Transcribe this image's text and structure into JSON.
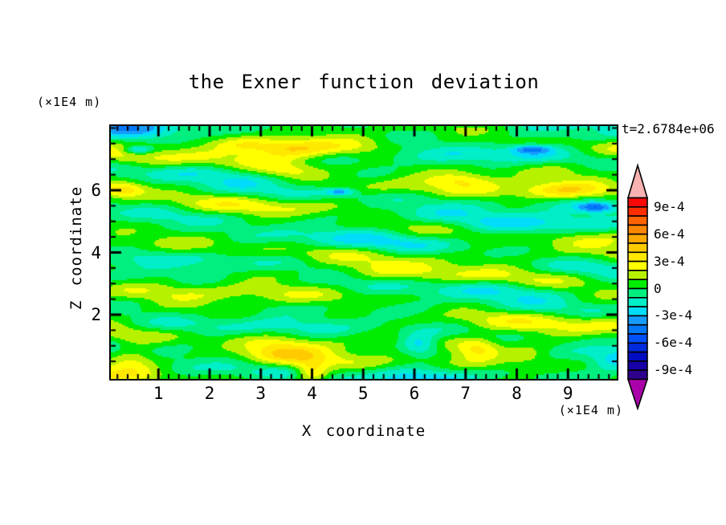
{
  "title": "the Exner function deviation",
  "time_label": "t=2.6784e+06",
  "axes": {
    "x_label": "X coordinate",
    "x_unit": "(×1E4 m)",
    "y_label": "Z coordinate",
    "y_unit": "(×1E4 m)"
  },
  "chart_data": {
    "type": "heatmap",
    "subtype": "filled-contour",
    "title": "the Exner function deviation",
    "time_annotation": "t=2.6784e+06",
    "xlabel": "X coordinate",
    "ylabel": "Z coordinate",
    "x_unit": "(×1E4 m)",
    "y_unit": "(×1E4 m)",
    "xlim": [
      0.07,
      9.95
    ],
    "ylim": [
      -0.06,
      8.06
    ],
    "x_major_ticks": [
      1,
      2,
      3,
      4,
      5,
      6,
      7,
      8,
      9
    ],
    "x_minor_step": 0.2,
    "y_major_ticks": [
      2,
      4,
      6
    ],
    "y_minor_step": 0.5,
    "grid": false,
    "legend_position": "right-colorbar",
    "contour_interval": 0.0001,
    "colorbar": {
      "labels": [
        "9e-4",
        "6e-4",
        "3e-4",
        "0",
        "-3e-4",
        "-6e-4",
        "-9e-4"
      ],
      "label_values": [
        0.0009,
        0.0006,
        0.0003,
        0,
        -0.0003,
        -0.0006,
        -0.0009
      ],
      "level_range": [
        -0.001,
        0.001
      ],
      "over_color": "#f8b2b2",
      "under_color": "#aa00aa",
      "colors_top_to_bottom": [
        "#fb0808",
        "#ff2e00",
        "#ff6400",
        "#ff8600",
        "#ffa800",
        "#ffca00",
        "#ffe800",
        "#ffff00",
        "#b6f200",
        "#00ec00",
        "#00ef7e",
        "#00eec8",
        "#00dcfa",
        "#169cff",
        "#0078f8",
        "#0050ff",
        "#002ade",
        "#000cc2",
        "#1600a6",
        "#2f008e"
      ]
    },
    "background_bias": 0.3,
    "field_modes": [
      [
        1.0,
        0.7,
        4.3,
        1.1
      ],
      [
        0.75,
        -0.55,
        2.6,
        2.1
      ],
      [
        0.6,
        1.2,
        5.3,
        0.4
      ],
      [
        0.45,
        2.3,
        3.4,
        2.6
      ],
      [
        0.35,
        3.2,
        -6.8,
        0.7
      ],
      [
        0.3,
        0.35,
        8.9,
        1.9
      ]
    ],
    "features": {
      "hot": [
        [
          3.6,
          7.32,
          4.5,
          0.75,
          0.3
        ],
        [
          4.7,
          7.3,
          2.2,
          0.8,
          0.28
        ],
        [
          2.7,
          7.45,
          2.0,
          0.6,
          0.25
        ],
        [
          3.5,
          6.6,
          1.8,
          0.65,
          0.24
        ],
        [
          0.3,
          6.0,
          3.7,
          0.45,
          0.24
        ],
        [
          8.9,
          6.0,
          2.9,
          0.75,
          0.28
        ],
        [
          6.9,
          6.35,
          1.9,
          0.55,
          0.22
        ],
        [
          0.45,
          0.55,
          3.3,
          0.55,
          0.45
        ],
        [
          3.4,
          0.8,
          2.7,
          0.75,
          0.38
        ],
        [
          4.0,
          0.15,
          3.8,
          0.34,
          0.32
        ],
        [
          7.25,
          0.9,
          3.0,
          0.42,
          0.36
        ],
        [
          8.2,
          0.7,
          2.2,
          0.55,
          0.3
        ]
      ],
      "cold": [
        [
          0.6,
          7.3,
          -3.6,
          0.28,
          0.13
        ],
        [
          8.3,
          7.32,
          -3.8,
          0.4,
          0.14
        ],
        [
          8.3,
          7.2,
          -1.5,
          0.9,
          0.3
        ],
        [
          4.55,
          5.95,
          -3.5,
          0.28,
          0.11
        ],
        [
          9.55,
          5.45,
          -4.1,
          0.36,
          0.15
        ],
        [
          6.1,
          1.05,
          -3.9,
          0.4,
          0.34
        ],
        [
          1.8,
          -0.15,
          -2.4,
          1.1,
          0.5
        ],
        [
          6.1,
          -0.3,
          -2.3,
          0.85,
          0.5
        ],
        [
          9.9,
          0.3,
          -2.4,
          0.5,
          0.4
        ],
        [
          5.0,
          8.45,
          -2.2,
          4.0,
          0.5
        ],
        [
          0.5,
          7.9,
          -1.8,
          0.9,
          0.45
        ],
        [
          0.8,
          4.8,
          -1.7,
          1.0,
          0.32
        ],
        [
          8.3,
          4.8,
          -1.9,
          1.3,
          0.36
        ],
        [
          5.2,
          5.25,
          -1.6,
          2.0,
          0.28
        ]
      ]
    }
  }
}
